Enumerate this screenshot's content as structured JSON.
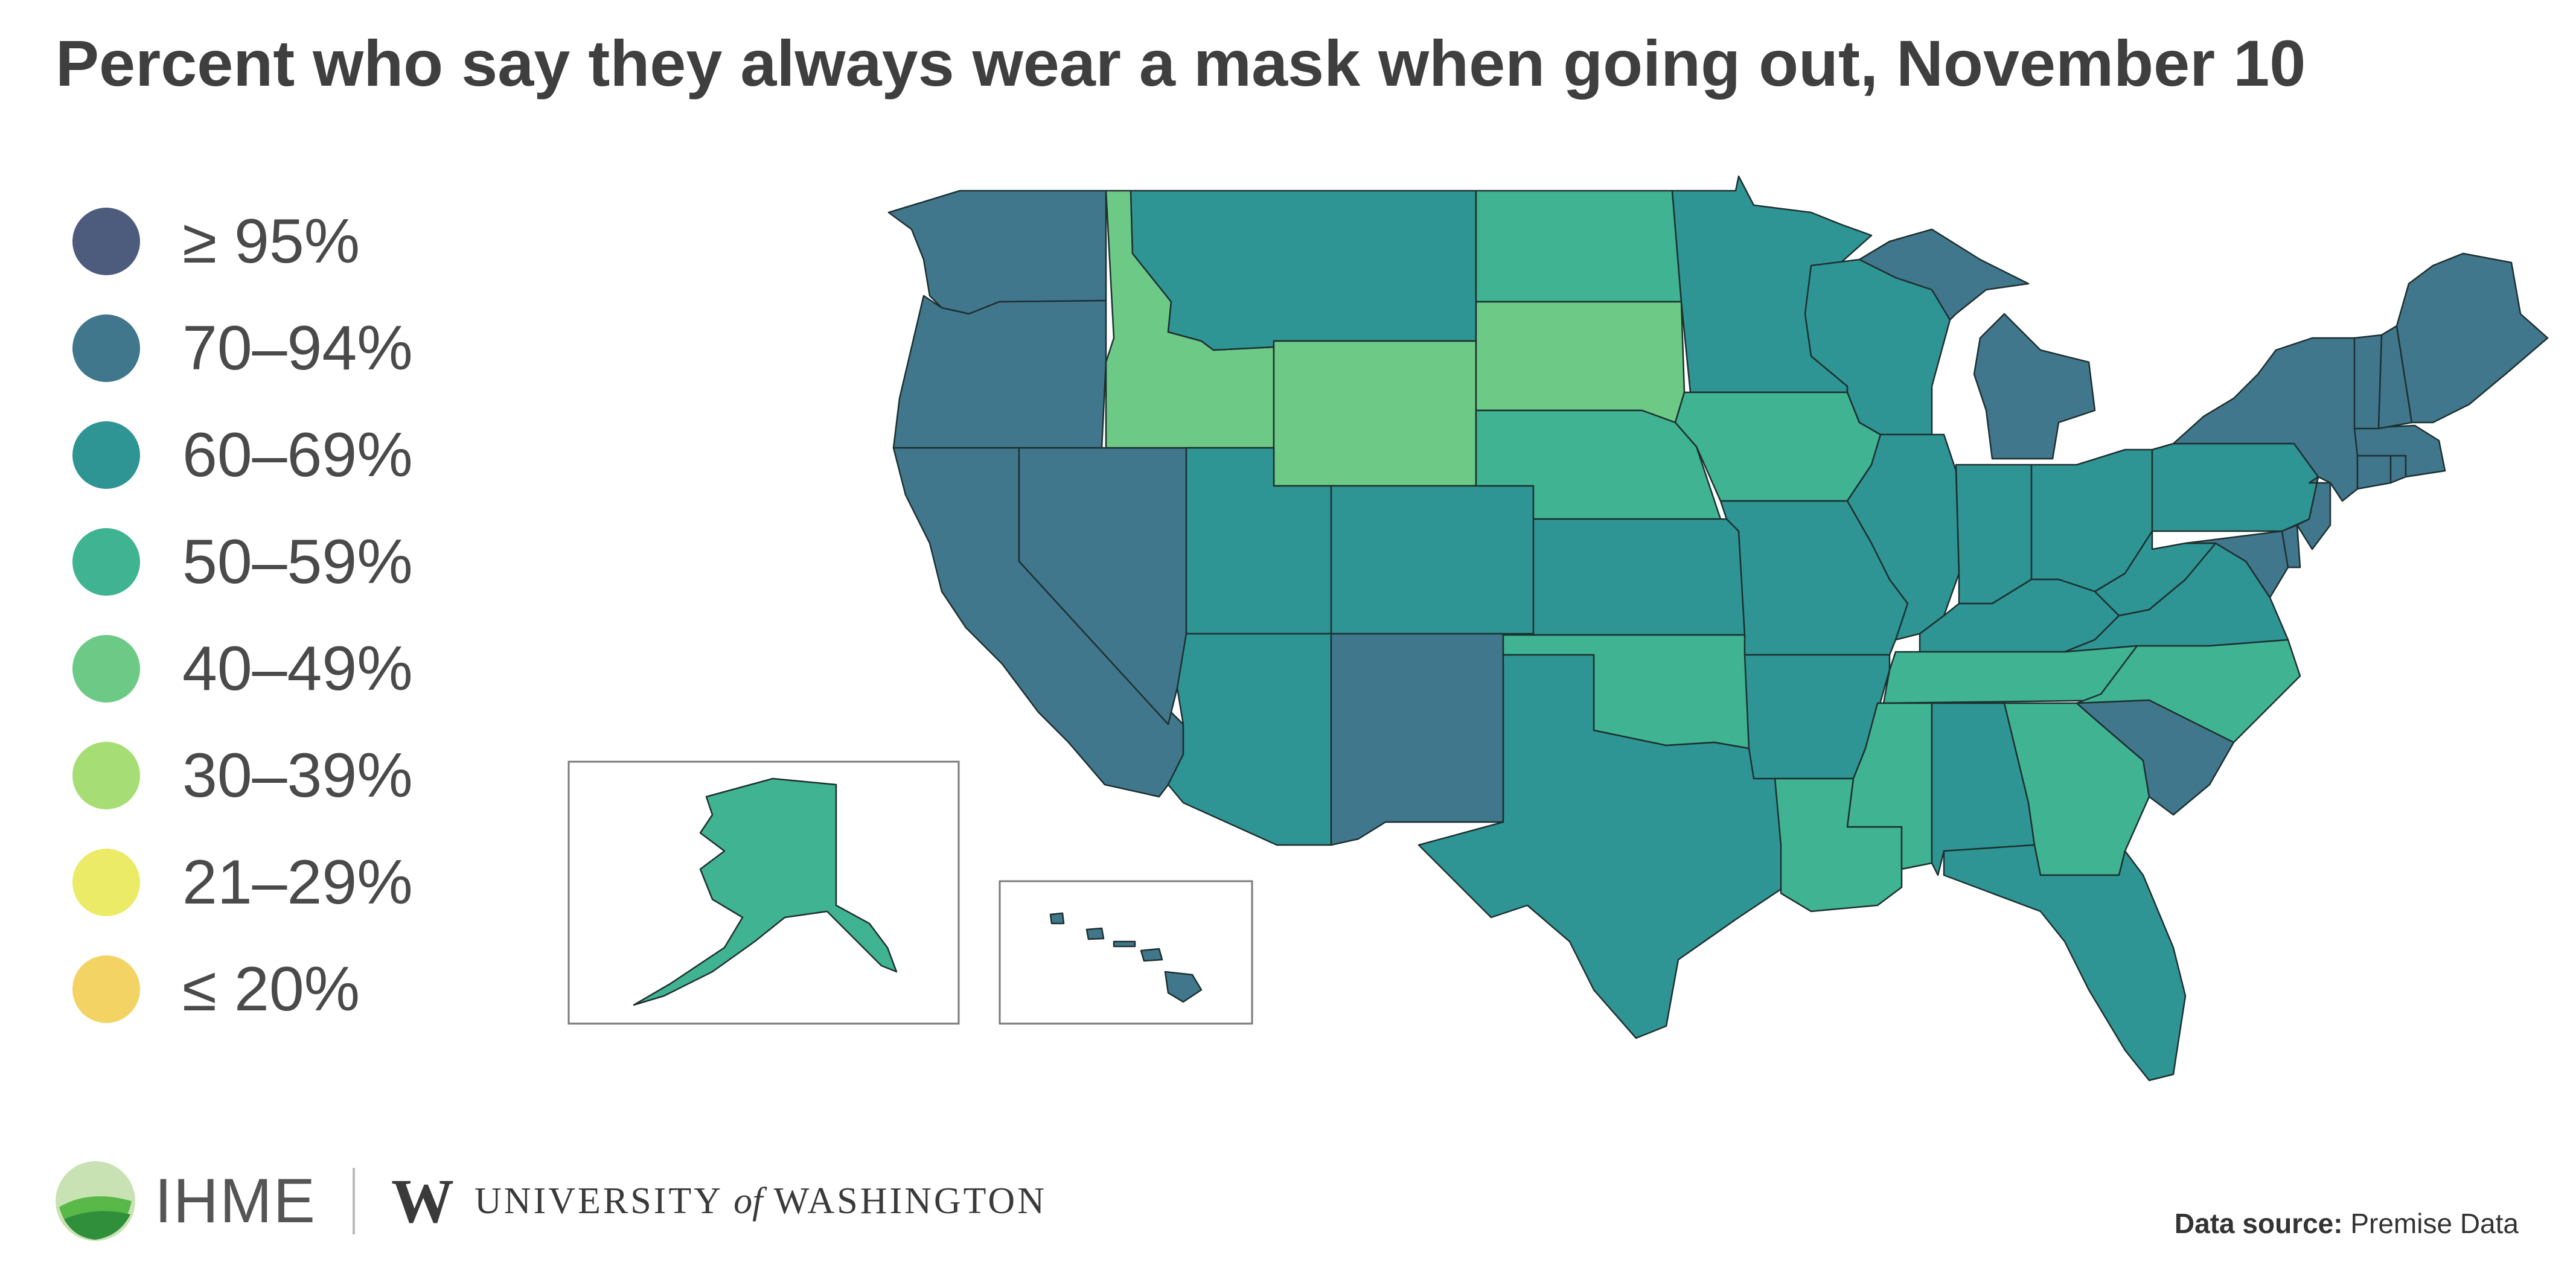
{
  "title": "Percent who say they always wear a mask when going out, November 10",
  "legend": [
    {
      "label": "≥ 95%",
      "color": "#4d5c7d"
    },
    {
      "label": "70–94%",
      "color": "#40778c"
    },
    {
      "label": "60–69%",
      "color": "#2e9594"
    },
    {
      "label": "50–59%",
      "color": "#3fb392"
    },
    {
      "label": "40–49%",
      "color": "#6dc986"
    },
    {
      "label": "30–39%",
      "color": "#a6dd74"
    },
    {
      "label": "21–29%",
      "color": "#eceb68"
    },
    {
      "label": "≤ 20%",
      "color": "#f3d364"
    }
  ],
  "map": {
    "type": "choropleth",
    "region": "United States",
    "categories_by_state": {
      "WA": "70–94%",
      "OR": "70–94%",
      "CA": "70–94%",
      "NV": "70–94%",
      "NM": "70–94%",
      "MI": "70–94%",
      "NY": "70–94%",
      "VT": "70–94%",
      "NH": "70–94%",
      "ME": "70–94%",
      "MA": "70–94%",
      "CT": "70–94%",
      "RI": "70–94%",
      "NJ": "70–94%",
      "DE": "70–94%",
      "MD": "70–94%",
      "SC": "70–94%",
      "HI": "70–94%",
      "MT": "60–69%",
      "UT": "60–69%",
      "AZ": "60–69%",
      "CO": "60–69%",
      "KS": "60–69%",
      "TX": "60–69%",
      "MN": "60–69%",
      "WI": "60–69%",
      "MO": "60–69%",
      "AR": "60–69%",
      "IL": "60–69%",
      "IN": "60–69%",
      "OH": "60–69%",
      "KY": "60–69%",
      "WV": "60–69%",
      "VA": "60–69%",
      "PA": "60–69%",
      "AL": "60–69%",
      "FL": "60–69%",
      "ND": "50–59%",
      "NE": "50–59%",
      "OK": "50–59%",
      "IA": "50–59%",
      "LA": "50–59%",
      "MS": "50–59%",
      "TN": "50–59%",
      "GA": "50–59%",
      "NC": "50–59%",
      "AK": "50–59%",
      "ID": "40–49%",
      "WY": "40–49%",
      "SD": "40–49%"
    }
  },
  "footer": {
    "ihme_label": "IHME",
    "uw_letter": "W",
    "uw_part1": "UNIVERSITY",
    "uw_of": "of",
    "uw_part2": "WASHINGTON",
    "source_label": "Data source:",
    "source_value": "Premise Data"
  }
}
